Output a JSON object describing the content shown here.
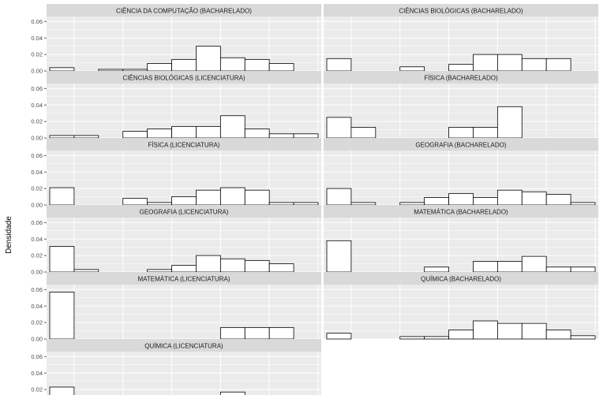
{
  "chart_data": {
    "type": "bar",
    "ylabel": "Densidade",
    "ylim": [
      0,
      0.066
    ],
    "y_ticks": [
      "0.00",
      "0.02",
      "0.04",
      "0.06"
    ],
    "y_tick_values": [
      0,
      0.02,
      0.04,
      0.06
    ],
    "bins": 11,
    "grid": true,
    "colors": {
      "panel_bg": "#ebebeb",
      "strip_bg": "#d9d9d9",
      "grid": "#ffffff",
      "bar_fill": "#ffffff",
      "bar_stroke": "#000000"
    },
    "panels": [
      {
        "title": "CIÊNCIA DA COMPUTAÇÃO (BACHARELADO)",
        "values": [
          0.004,
          0,
          0.002,
          0.002,
          0.009,
          0.014,
          0.03,
          0.016,
          0.014,
          0.009,
          0
        ]
      },
      {
        "title": "CIÊNCIAS BIOLÓGICAS (BACHARELADO)",
        "values": [
          0.015,
          0,
          0,
          0.005,
          0,
          0.008,
          0.02,
          0.02,
          0.015,
          0.015,
          0
        ]
      },
      {
        "title": "CIÊNCIAS BIOLÓGICAS (LICENCIATURA)",
        "values": [
          0.003,
          0.003,
          0,
          0.008,
          0.011,
          0.014,
          0.014,
          0.027,
          0.011,
          0.005,
          0.005
        ]
      },
      {
        "title": "FÍSICA (BACHARELADO)",
        "values": [
          0.025,
          0.013,
          0,
          0,
          0,
          0.013,
          0.013,
          0.038,
          0,
          0,
          0
        ]
      },
      {
        "title": "FÍSICA (LICENCIATURA)",
        "values": [
          0.021,
          0,
          0,
          0.008,
          0.003,
          0.01,
          0.018,
          0.021,
          0.018,
          0.003,
          0.003
        ]
      },
      {
        "title": "GEOGRAFIA (BACHARELADO)",
        "values": [
          0.02,
          0.003,
          0,
          0.003,
          0.009,
          0.014,
          0.009,
          0.018,
          0.016,
          0.013,
          0.003
        ]
      },
      {
        "title": "GEOGRAFIA (LICENCIATURA)",
        "values": [
          0.031,
          0.003,
          0,
          0,
          0.003,
          0.008,
          0.02,
          0.016,
          0.014,
          0.01,
          0
        ]
      },
      {
        "title": "MATEMÁTICA (BACHARELADO)",
        "values": [
          0.038,
          0,
          0,
          0,
          0.006,
          0,
          0.013,
          0.013,
          0.019,
          0.006,
          0.006
        ]
      },
      {
        "title": "MATEMÁTICA (LICENCIATURA)",
        "values": [
          0.057,
          0,
          0,
          0,
          0,
          0,
          0,
          0.014,
          0.014,
          0.014,
          0
        ]
      },
      {
        "title": "QUÍMICA (BACHARELADO)",
        "values": [
          0.007,
          0,
          0,
          0.003,
          0.003,
          0.011,
          0.022,
          0.019,
          0.019,
          0.011,
          0.004
        ]
      },
      {
        "title": "QUÍMICA (LICENCIATURA)",
        "values": [
          0.023,
          0,
          0,
          0,
          0,
          0,
          0,
          0.017,
          0,
          0,
          0
        ]
      }
    ]
  }
}
